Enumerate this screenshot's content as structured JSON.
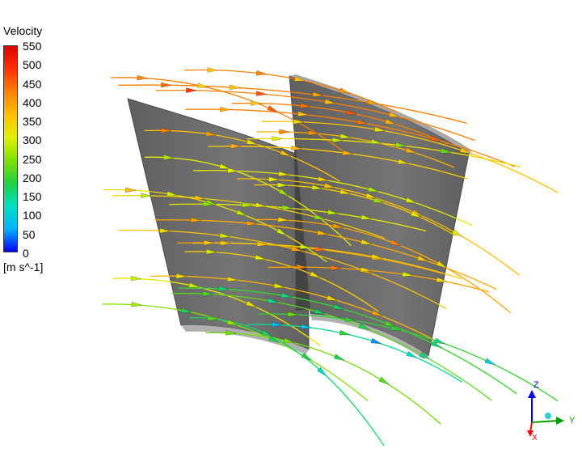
{
  "legend": {
    "title": "Velocity",
    "unit": "[m s^-1]",
    "ticks": [
      "550",
      "500",
      "450",
      "400",
      "350",
      "300",
      "250",
      "200",
      "150",
      "100",
      "50",
      "0"
    ],
    "min": 0,
    "max": 550,
    "colormap": [
      "#0000ff",
      "#00b4ff",
      "#00e0c0",
      "#20d040",
      "#80e000",
      "#e0f000",
      "#ffc000",
      "#ff8000",
      "#ff3000",
      "#e00000"
    ]
  },
  "triad": {
    "z_label": "Z",
    "y_label": "Y",
    "x_label": "X",
    "z_color": "#0000ff",
    "y_color": "#00a000",
    "x_color": "#ff0000"
  },
  "scene": {
    "blade_color": "#6b6b6b",
    "blade_edge_color": "#a8a8a8"
  }
}
